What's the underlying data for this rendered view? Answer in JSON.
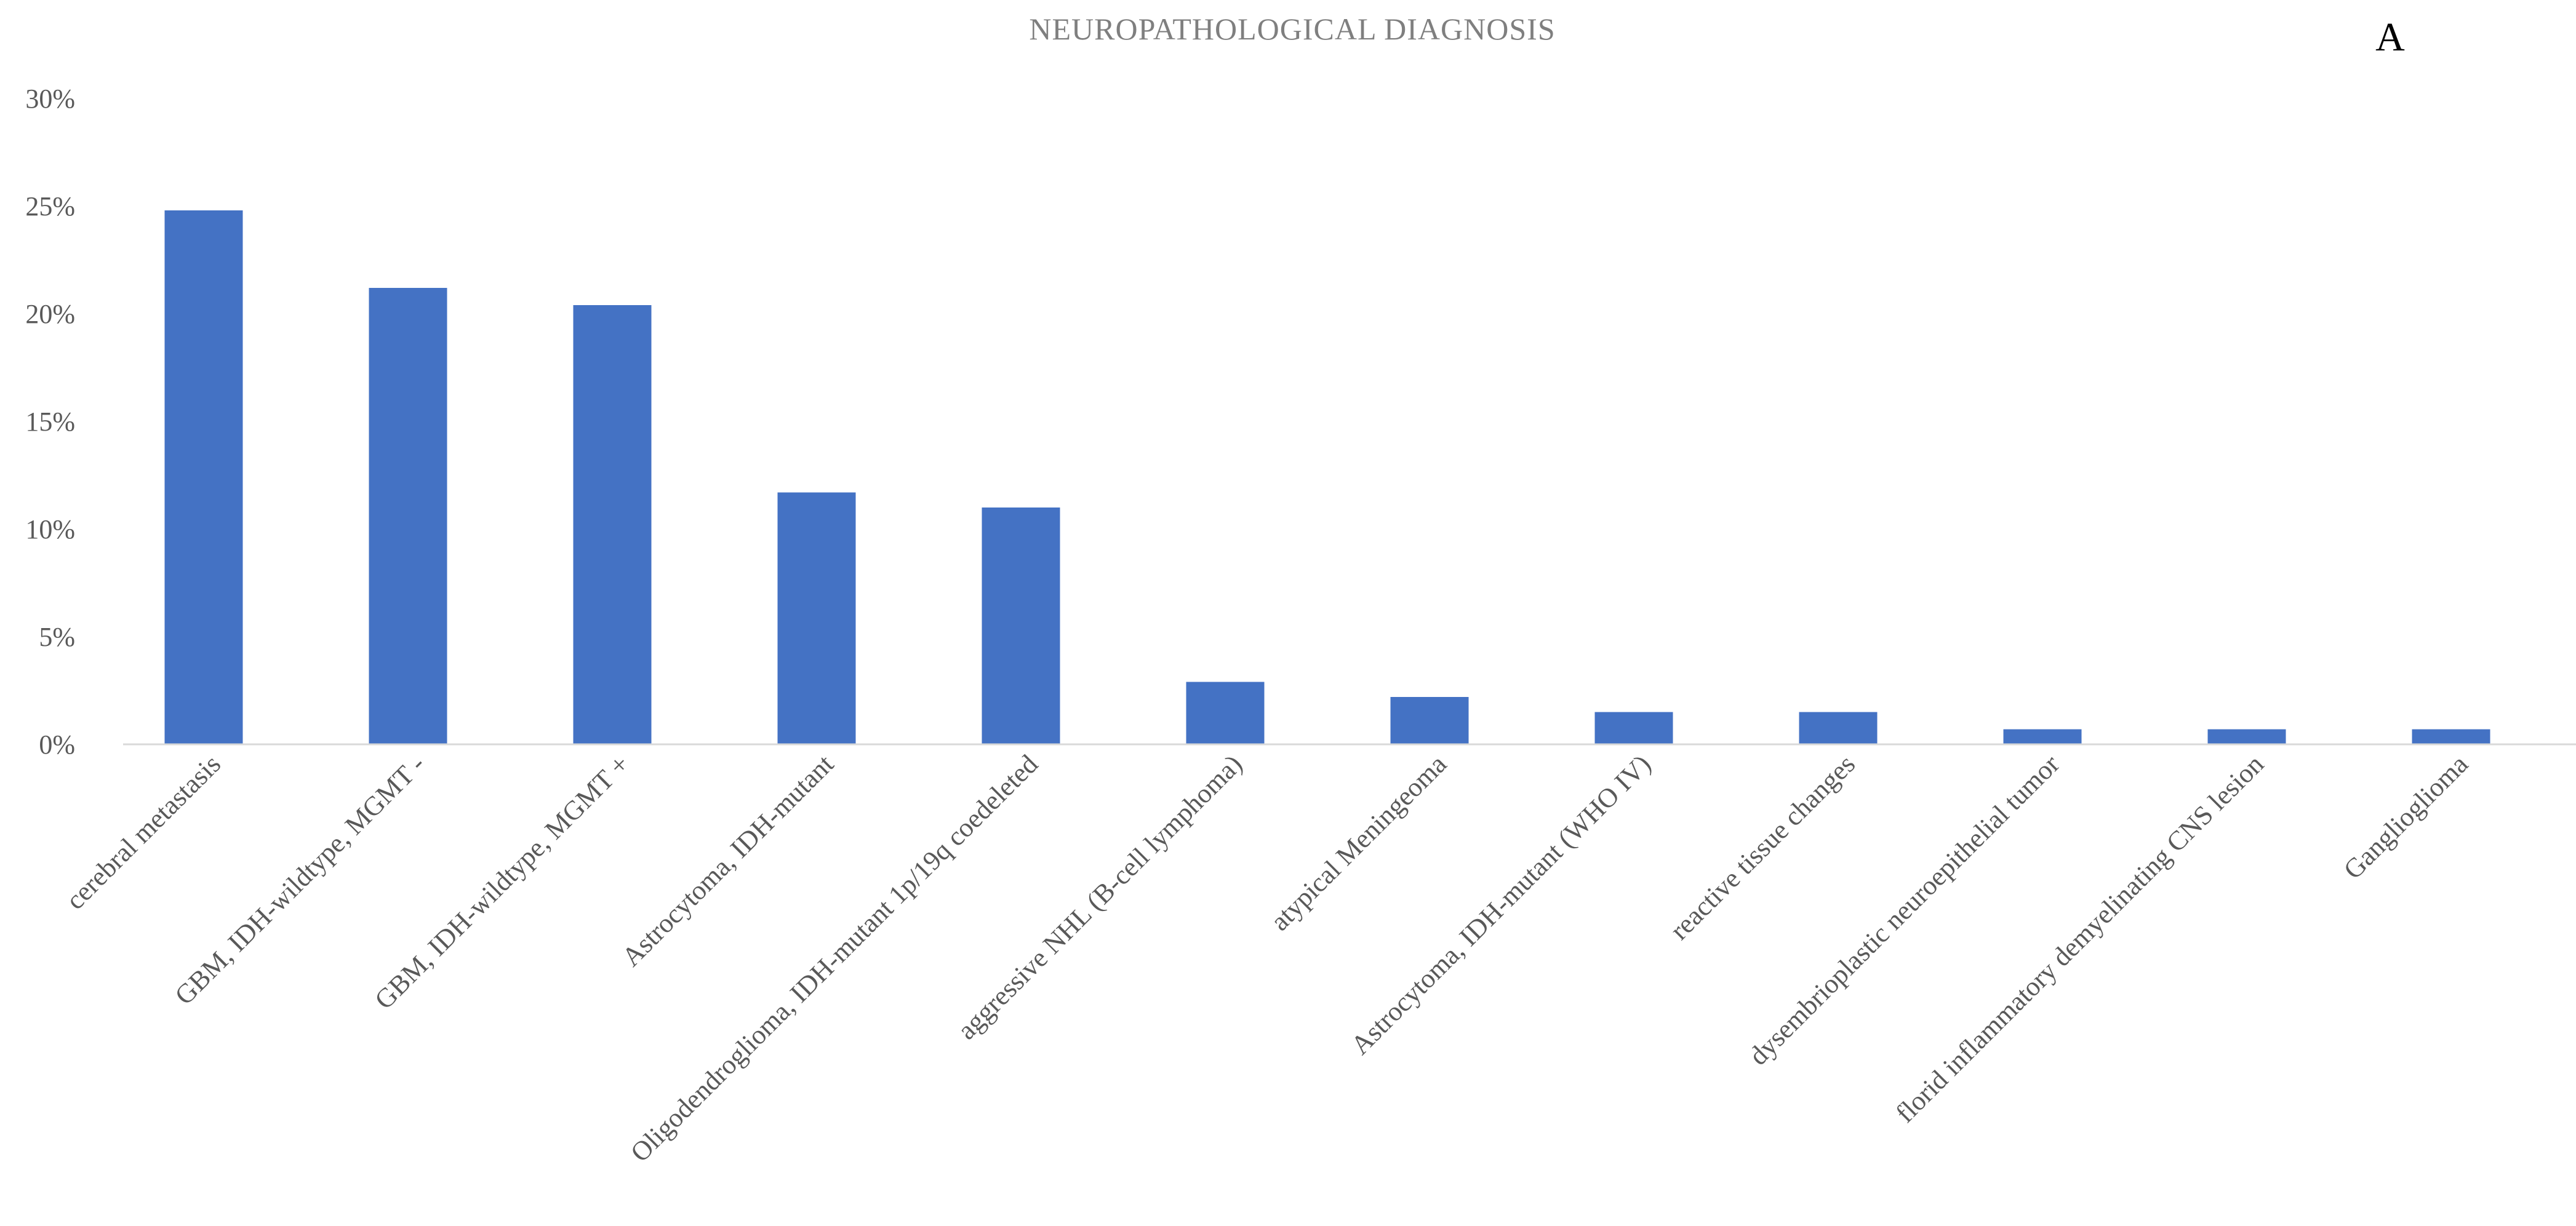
{
  "chart_data": {
    "type": "bar",
    "title": "NEUROPATHOLOGICAL DIAGNOSIS",
    "panel_label": "A",
    "categories": [
      "cerebral metastasis",
      "GBM, IDH-wildtype, MGMT -",
      "GBM, IDH-wildtype, MGMT +",
      "Astrocytoma, IDH-mutant",
      "Oligodendroglioma, IDH-mutant 1p/19q coedeleted",
      "aggressive NHL (B-cell lymphoma)",
      "atypical Meningeoma",
      "Astrocytoma, IDH-mutant (WHO IV)",
      "reactive tissue changes",
      "dysembrioplastic neuroepithelial tumor",
      "florid inflammatory demyelinating CNS lesion",
      "Ganglioglioma"
    ],
    "values": [
      24.8,
      21.2,
      20.4,
      11.7,
      11.0,
      2.9,
      2.2,
      1.5,
      1.5,
      0.7,
      0.7,
      0.7
    ],
    "xlabel": "",
    "ylabel": "",
    "ylim": [
      0,
      30
    ],
    "yticks": [
      0,
      5,
      10,
      15,
      20,
      25,
      30
    ],
    "ytick_labels": [
      "0%",
      "5%",
      "10%",
      "15%",
      "20%",
      "25%",
      "30%"
    ],
    "grid": false,
    "legend": "none",
    "bar_color": "#4472c4"
  }
}
